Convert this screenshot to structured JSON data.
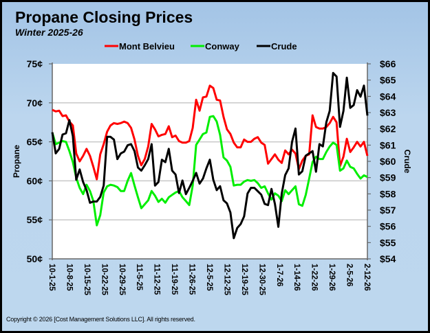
{
  "chart_data": {
    "type": "line",
    "title": "Propane Closing Prices",
    "subtitle": "Winter 2025-26",
    "ylabel_left": "Propane",
    "ylabel_right": "Crude",
    "ylim_left": [
      50,
      75
    ],
    "ylim_right": [
      54,
      66
    ],
    "y_ticks_left": [
      "50¢",
      "55¢",
      "60¢",
      "65¢",
      "70¢",
      "75¢"
    ],
    "y_ticks_right": [
      "$54",
      "$55",
      "$56",
      "$57",
      "$58",
      "$59",
      "$60",
      "$61",
      "$62",
      "$63",
      "$64",
      "$65",
      "$66"
    ],
    "x_tick_labels": [
      "10-1-25",
      "10-8-25",
      "10-15-25",
      "10-22-25",
      "10-29-25",
      "11-5-25",
      "11-12-25",
      "11-19-25",
      "11-26-25",
      "12-5-25",
      "12-12-25",
      "12-19-25",
      "12-30-25",
      "1-7-26",
      "1-14-26",
      "1-22-26",
      "1-29-26",
      "2-5-26",
      "2-12-26"
    ],
    "x_range": [
      "10-1-25",
      "2-12-26"
    ],
    "grid": "horizontal",
    "legend_placement": "top",
    "series": [
      {
        "name": "Mont Belvieu",
        "axis": "left",
        "color": "#ff0000",
        "values": [
          69.1,
          68.9,
          69.0,
          68.3,
          68.4,
          67.6,
          67.1,
          63.5,
          62.5,
          63.2,
          64.1,
          63.2,
          61.8,
          60.2,
          63.4,
          64.7,
          66.3,
          67.1,
          67.4,
          67.3,
          67.4,
          67.6,
          67.4,
          66.8,
          65.3,
          63.2,
          62.0,
          62.8,
          64.4,
          67.3,
          66.6,
          65.7,
          65.9,
          66.0,
          67.0,
          65.6,
          65.8,
          65.1,
          64.9,
          64.9,
          65.1,
          66.8,
          70.4,
          69.0,
          70.7,
          70.8,
          72.2,
          71.9,
          70.4,
          70.3,
          68.2,
          66.6,
          66.0,
          64.9,
          64.3,
          64.3,
          65.3,
          65.0,
          65.0,
          65.4,
          65.6,
          64.9,
          64.6,
          62.2,
          62.8,
          63.4,
          62.7,
          62.3,
          63.9,
          63.4,
          64.0,
          63.5,
          61.5,
          62.6,
          63.2,
          63.4,
          68.4,
          66.9,
          66.7,
          66.7,
          66.9,
          67.4,
          68.2,
          67.5,
          61.9,
          63.1,
          65.4,
          63.7,
          64.3,
          65.0,
          64.4,
          65.0,
          63.2
        ]
      },
      {
        "name": "Conway",
        "axis": "left",
        "color": "#00ee00",
        "values": [
          66.2,
          64.7,
          64.9,
          65.1,
          65.0,
          63.8,
          62.4,
          60.4,
          59.1,
          58.3,
          59.5,
          58.7,
          57.4,
          54.3,
          55.6,
          58.5,
          59.3,
          59.5,
          59.4,
          59.2,
          58.7,
          58.7,
          60.0,
          61.0,
          59.4,
          57.9,
          56.5,
          57.0,
          57.5,
          58.7,
          58.1,
          57.3,
          57.7,
          57.2,
          57.9,
          58.2,
          58.5,
          58.7,
          57.9,
          57.4,
          56.9,
          59.4,
          64.6,
          65.3,
          66.0,
          66.2,
          68.2,
          68.3,
          67.6,
          65.9,
          63.0,
          62.6,
          61.8,
          59.4,
          59.5,
          59.5,
          59.9,
          60.1,
          60.0,
          60.1,
          59.7,
          59.1,
          59.3,
          58.4,
          57.6,
          58.4,
          58.1,
          57.4,
          58.8,
          58.3,
          58.8,
          59.3,
          57.0,
          56.8,
          58.2,
          60.3,
          62.4,
          63.1,
          62.8,
          62.8,
          63.7,
          64.4,
          64.9,
          64.6,
          61.3,
          61.6,
          62.6,
          61.8,
          61.6,
          60.9,
          60.3,
          60.7,
          60.5
        ]
      },
      {
        "name": "Crude",
        "axis": "right",
        "color": "#000000",
        "values": [
          61.79,
          60.49,
          60.77,
          61.65,
          61.73,
          62.54,
          61.55,
          58.87,
          59.5,
          58.73,
          58.23,
          57.45,
          57.53,
          57.53,
          57.81,
          58.51,
          61.51,
          61.51,
          61.34,
          60.14,
          60.49,
          60.6,
          60.99,
          61.06,
          60.63,
          59.62,
          59.43,
          59.76,
          60.14,
          61.06,
          58.51,
          58.73,
          60.1,
          59.95,
          60.77,
          59.43,
          59.19,
          58.05,
          58.82,
          57.98,
          58.37,
          58.8,
          59.29,
          58.63,
          58.94,
          59.57,
          60.1,
          58.87,
          58.23,
          58.47,
          57.6,
          57.41,
          56.85,
          55.27,
          55.9,
          56.14,
          56.61,
          58.02,
          58.37,
          58.37,
          58.16,
          57.95,
          57.38,
          57.31,
          58.3,
          57.38,
          55.97,
          58.02,
          59.15,
          59.57,
          61.2,
          62.02,
          59.19,
          59.39,
          60.35,
          60.49,
          60.63,
          59.36,
          61.06,
          60.92,
          62.4,
          63.1,
          65.44,
          65.22,
          62.12,
          63.1,
          65.15,
          63.29,
          63.46,
          64.38,
          63.98,
          64.66,
          62.82
        ]
      }
    ]
  },
  "footer": {
    "copyright": "Copyright © 2026 [Cost Management Solutions LLC].  All rights reserved."
  }
}
